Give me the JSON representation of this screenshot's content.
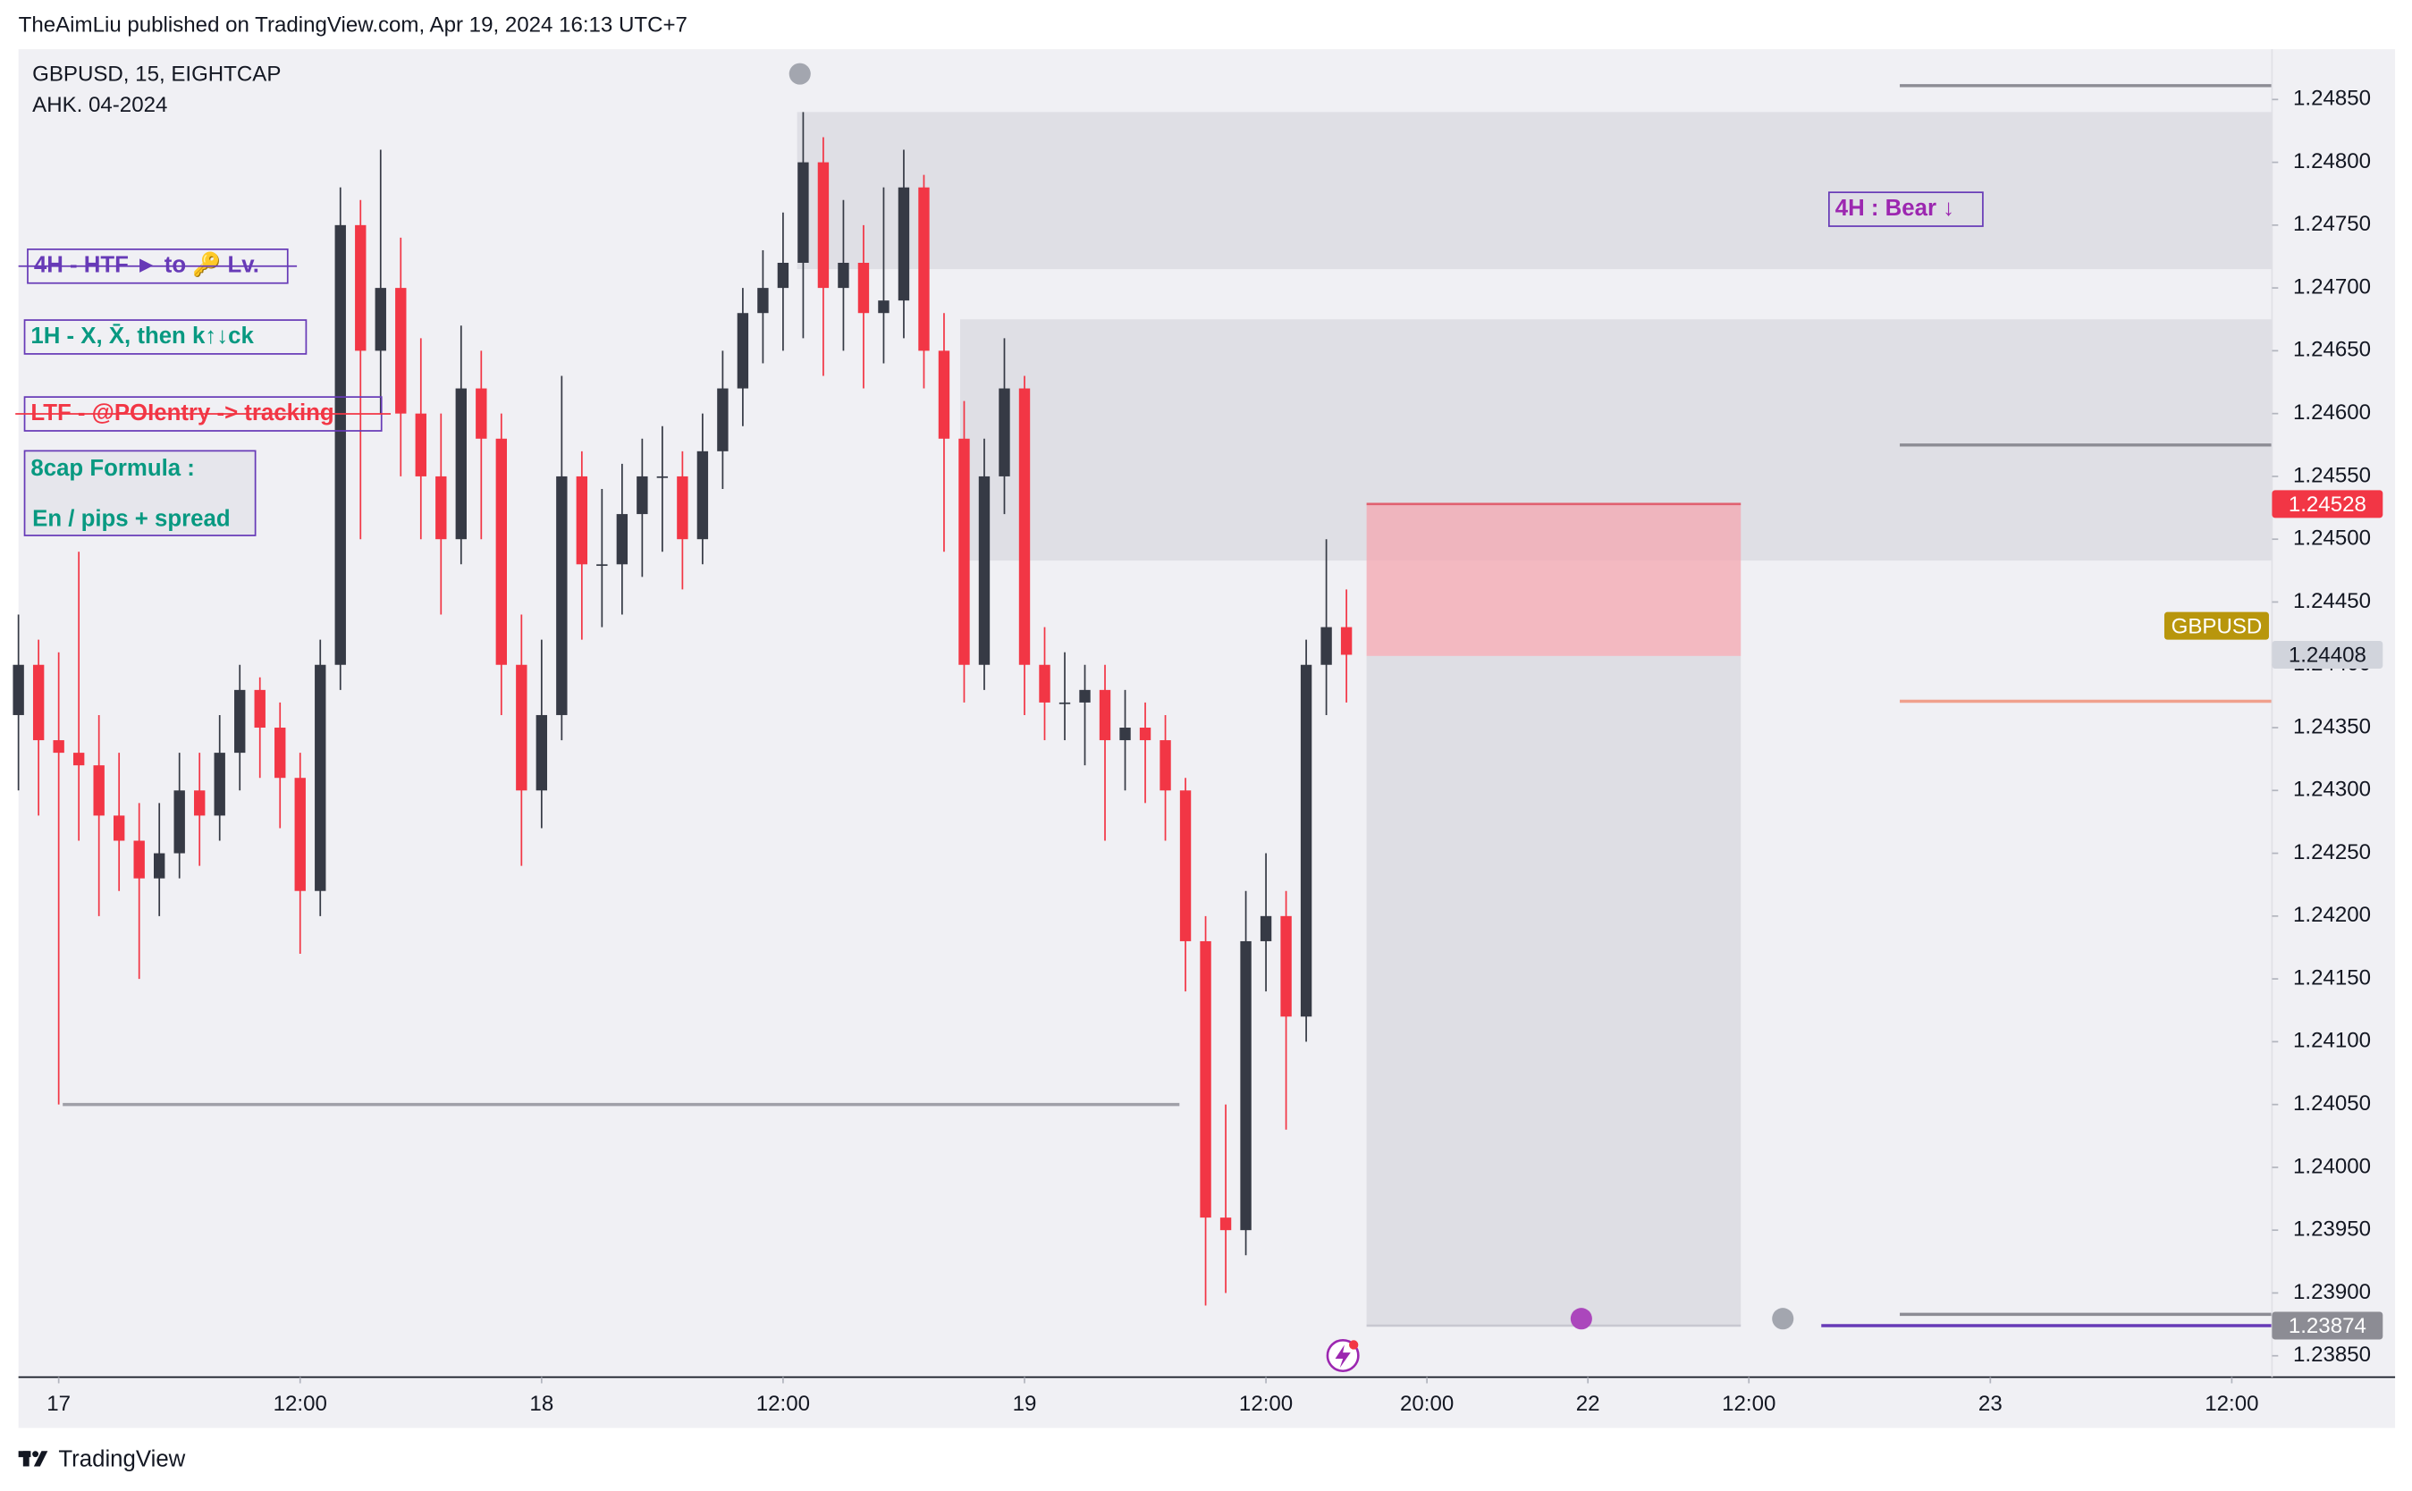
{
  "header": {
    "byline": "TheAimLiu published on TradingView.com, Apr 19, 2024 16:13 UTC+7",
    "brand": "TradingView"
  },
  "chart_data": {
    "type": "candlestick",
    "title": "GBPUSD, 15, EIGHTCAP",
    "subtitle": "AHK. 04-2024",
    "x": [
      -2,
      -1,
      0,
      1,
      2,
      3,
      4,
      5,
      6,
      7,
      8,
      9,
      10,
      11,
      12,
      13,
      14,
      15,
      16,
      17,
      18,
      19,
      20,
      21,
      22,
      23,
      24,
      25,
      26,
      27,
      28,
      29,
      30,
      31,
      32,
      33,
      34,
      35,
      36,
      37,
      38,
      39,
      40,
      41,
      42,
      43,
      44,
      45,
      46,
      47,
      48,
      49,
      50,
      51,
      52,
      53,
      54,
      55,
      56,
      57,
      58,
      59,
      60,
      61,
      62,
      63,
      64
    ],
    "open": [
      1.2436,
      1.244,
      1.2434,
      1.2433,
      1.2432,
      1.2428,
      1.2426,
      1.2423,
      1.2425,
      1.243,
      1.2428,
      1.2433,
      1.2438,
      1.2435,
      1.2431,
      1.2422,
      1.244,
      1.2475,
      1.2465,
      1.247,
      1.246,
      1.2455,
      1.245,
      1.2462,
      1.2458,
      1.244,
      1.243,
      1.2436,
      1.2455,
      1.2448,
      1.2448,
      1.2452,
      1.2455,
      1.2455,
      1.245,
      1.2457,
      1.2462,
      1.2468,
      1.247,
      1.2472,
      1.248,
      1.247,
      1.2472,
      1.2468,
      1.2469,
      1.2478,
      1.2465,
      1.2458,
      1.244,
      1.2455,
      1.2462,
      1.244,
      1.2437,
      1.2437,
      1.2438,
      1.2434,
      1.2435,
      1.2434,
      1.243,
      1.2418,
      1.2396,
      1.2395,
      1.2418,
      1.242,
      1.2412,
      1.244,
      1.2443
    ],
    "high": [
      1.2444,
      1.2442,
      1.2441,
      1.2449,
      1.2436,
      1.2433,
      1.2429,
      1.2429,
      1.2433,
      1.2433,
      1.2436,
      1.244,
      1.2439,
      1.2437,
      1.2433,
      1.2442,
      1.2478,
      1.2477,
      1.2481,
      1.2474,
      1.2466,
      1.246,
      1.2467,
      1.2465,
      1.246,
      1.2444,
      1.2442,
      1.2463,
      1.2457,
      1.2454,
      1.2456,
      1.2458,
      1.2459,
      1.2457,
      1.246,
      1.2465,
      1.247,
      1.2473,
      1.2476,
      1.2484,
      1.2482,
      1.2477,
      1.2475,
      1.2478,
      1.2481,
      1.2479,
      1.2468,
      1.2461,
      1.2458,
      1.2466,
      1.2463,
      1.2443,
      1.2441,
      1.244,
      1.244,
      1.2438,
      1.2437,
      1.2436,
      1.2431,
      1.242,
      1.2405,
      1.2422,
      1.2425,
      1.2422,
      1.2442,
      1.245,
      1.2446
    ],
    "low": [
      1.243,
      1.2428,
      1.2405,
      1.2426,
      1.242,
      1.2422,
      1.2415,
      1.242,
      1.2423,
      1.2424,
      1.2426,
      1.243,
      1.2431,
      1.2427,
      1.2417,
      1.242,
      1.2438,
      1.245,
      1.246,
      1.2455,
      1.245,
      1.2444,
      1.2448,
      1.245,
      1.2436,
      1.2424,
      1.2427,
      1.2434,
      1.2442,
      1.2443,
      1.2444,
      1.2447,
      1.2449,
      1.2446,
      1.2448,
      1.2454,
      1.2459,
      1.2464,
      1.2465,
      1.2466,
      1.2463,
      1.2465,
      1.2462,
      1.2464,
      1.2466,
      1.2462,
      1.2449,
      1.2437,
      1.2438,
      1.2452,
      1.2436,
      1.2434,
      1.2434,
      1.2432,
      1.2426,
      1.243,
      1.2429,
      1.2426,
      1.2414,
      1.2389,
      1.239,
      1.2393,
      1.2414,
      1.2403,
      1.241,
      1.2436,
      1.2437
    ],
    "close": [
      1.244,
      1.2434,
      1.2433,
      1.2432,
      1.2428,
      1.2426,
      1.2423,
      1.2425,
      1.243,
      1.2428,
      1.2433,
      1.2438,
      1.2435,
      1.2431,
      1.2422,
      1.244,
      1.2475,
      1.2465,
      1.247,
      1.246,
      1.2455,
      1.245,
      1.2462,
      1.2458,
      1.244,
      1.243,
      1.2436,
      1.2455,
      1.2448,
      1.2448,
      1.2452,
      1.2455,
      1.2455,
      1.245,
      1.2457,
      1.2462,
      1.2468,
      1.247,
      1.2472,
      1.248,
      1.247,
      1.2472,
      1.2468,
      1.2469,
      1.2478,
      1.2465,
      1.2458,
      1.244,
      1.2455,
      1.2462,
      1.244,
      1.2437,
      1.2437,
      1.2438,
      1.2434,
      1.2435,
      1.2434,
      1.243,
      1.2418,
      1.2396,
      1.2395,
      1.2418,
      1.242,
      1.2412,
      1.244,
      1.2443,
      1.24408
    ],
    "up_color": "#363a45",
    "down_color": "#f23645",
    "xlim": [
      -2,
      110
    ],
    "xticks": [
      {
        "value": 0,
        "label": "17"
      },
      {
        "value": 12,
        "label": "12:00"
      },
      {
        "value": 24,
        "label": "18"
      },
      {
        "value": 36,
        "label": "12:00"
      },
      {
        "value": 48,
        "label": "19"
      },
      {
        "value": 60,
        "label": "12:00"
      },
      {
        "value": 68,
        "label": "20:00"
      },
      {
        "value": 76,
        "label": "22"
      },
      {
        "value": 84,
        "label": "12:00"
      },
      {
        "value": 96,
        "label": "23"
      },
      {
        "value": 108,
        "label": "12:00"
      }
    ],
    "ylim": [
      1.23833,
      1.2489
    ],
    "yticks": [
      {
        "value": 1.2385,
        "label": "1.23850"
      },
      {
        "value": 1.239,
        "label": "1.23900"
      },
      {
        "value": 1.2395,
        "label": "1.23950"
      },
      {
        "value": 1.24,
        "label": "1.24000"
      },
      {
        "value": 1.2405,
        "label": "1.24050"
      },
      {
        "value": 1.241,
        "label": "1.24100"
      },
      {
        "value": 1.2415,
        "label": "1.24150"
      },
      {
        "value": 1.242,
        "label": "1.24200"
      },
      {
        "value": 1.2425,
        "label": "1.24250"
      },
      {
        "value": 1.243,
        "label": "1.24300"
      },
      {
        "value": 1.2435,
        "label": "1.24350"
      },
      {
        "value": 1.244,
        "label": "1.24400"
      },
      {
        "value": 1.2445,
        "label": "1.24450"
      },
      {
        "value": 1.245,
        "label": "1.24500"
      },
      {
        "value": 1.2455,
        "label": "1.24550"
      },
      {
        "value": 1.246,
        "label": "1.24600"
      },
      {
        "value": 1.2465,
        "label": "1.24650"
      },
      {
        "value": 1.247,
        "label": "1.24700"
      },
      {
        "value": 1.2475,
        "label": "1.24750"
      },
      {
        "value": 1.248,
        "label": "1.24800"
      },
      {
        "value": 1.2485,
        "label": "1.24850"
      }
    ],
    "zones": [
      {
        "top": 1.2484,
        "bottom": 1.24715,
        "x_start": 36.7,
        "color": "#dcdce2"
      },
      {
        "top": 1.24675,
        "bottom": 1.24483,
        "x_start": 44.8,
        "color": "#dcdce2"
      }
    ],
    "position": {
      "stop": 1.24528,
      "entry": 1.24407,
      "target": 1.23874,
      "x_start": 65,
      "x_end": 83.6,
      "risk_color": "#f4a7b0",
      "reward_color": "#dcdce2"
    },
    "levels": [
      {
        "value": 1.2405,
        "x_start": 0.2,
        "x_end": 55.7,
        "color": "#a0a0a8"
      },
      {
        "value": 1.24861,
        "x_start": 91.5,
        "x_end": 110,
        "color": "#8c8c94"
      },
      {
        "value": 1.24575,
        "x_start": 91.5,
        "x_end": 110,
        "color": "#8c8c94"
      },
      {
        "value": 1.24371,
        "x_start": 91.5,
        "x_end": 110,
        "color": "#f0a08c"
      },
      {
        "value": 1.23883,
        "x_start": 91.5,
        "x_end": 110,
        "color": "#8c8c94"
      },
      {
        "value": 1.23874,
        "x_start": 87.6,
        "x_end": 110,
        "color": "#673ab7"
      }
    ],
    "price_labels": [
      {
        "value": 1.24528,
        "color": "#f23645"
      },
      {
        "value": 1.24431,
        "label": "GBPUSD",
        "color": "#b8960c"
      },
      {
        "value": 1.24408,
        "color": "#d1d4dc"
      },
      {
        "value": 1.23874,
        "color": "#8c8c94"
      }
    ],
    "annotations": [
      {
        "text": "4H - HTF ► to 🔑 Lv.",
        "color": "#673ab7"
      },
      {
        "text": "1H - X, X̄, then k↑↓ck",
        "color": "#089981"
      },
      {
        "text": "LTF - @POIentry -> tracking",
        "color": "#f23645"
      },
      {
        "text": "8cap Formula :",
        "color": "#089981"
      },
      {
        "text": "En / pips + spread",
        "color": "#089981"
      },
      {
        "text": "4H : Bear ↓",
        "color": "#9c27b0"
      }
    ]
  }
}
